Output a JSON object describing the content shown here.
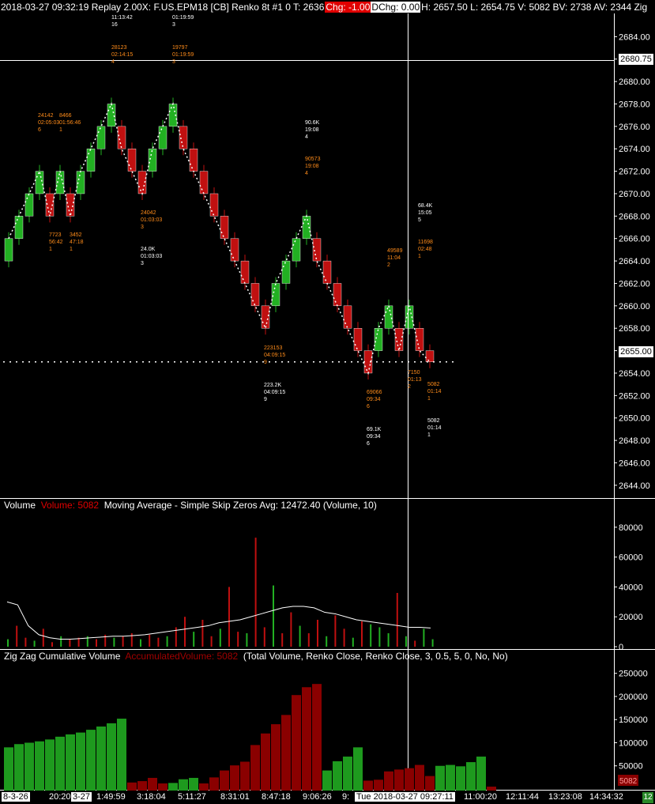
{
  "header": {
    "title": "2018-03-27 09:32:19 Replay 2.00X: F.US.EPM18 [CB]  Renko 8t  #1 0 T: 2636",
    "chg": "Chg: -1.00",
    "dchg": "DChg: 0.00",
    "stats": "H: 2657.50 L: 2654.75 V: 5082 BV: 2738 AV: 2344 Zig"
  },
  "price_axis": {
    "ticks": [
      "2684.00",
      "2682.00",
      "2680.00",
      "2678.00",
      "2676.00",
      "2674.00",
      "2672.00",
      "2670.00",
      "2668.00",
      "2666.00",
      "2664.00",
      "2662.00",
      "2660.00",
      "2658.00",
      "2656.00",
      "2654.00",
      "2652.00",
      "2650.00",
      "2648.00",
      "2646.00",
      "2644.00"
    ],
    "crosshair_price": "2680.75",
    "last_price": "2655.00"
  },
  "volume_panel": {
    "title_name": "Volume",
    "title_value": "Volume: 5082",
    "title_rest": "Moving Average - Simple Skip Zeros  Avg: 12472.40   (Volume, 10)",
    "ticks": [
      "80000",
      "60000",
      "40000",
      "20000",
      "0"
    ]
  },
  "zigzag_panel": {
    "title_name": "Zig Zag Cumulative Volume",
    "title_value": "AccumulatedVolume: 5082",
    "title_rest": "(Total Volume, Renko Close, Renko Close, 3, 0.5, 5, 0, No, No)",
    "ticks": [
      "250000",
      "200000",
      "150000",
      "100000",
      "50000"
    ],
    "last_value": "5082"
  },
  "time_axis": {
    "labels": [
      "8-3-26",
      "20:20",
      "3-27",
      "1:49:59",
      "3:18:04",
      "5:11:27",
      "8:31:01",
      "8:47:18",
      "9:06:26",
      "9:",
      "Tue 2018-03-27  09:27:11",
      "11:00:20",
      "12:11:44",
      "13:23:08",
      "14:34:32"
    ],
    "corner": "12"
  },
  "annotations": [
    {
      "text": "11:13:42\n16",
      "color": "w"
    },
    {
      "text": "01:19:59\n3",
      "color": "w"
    },
    {
      "text": "28123\n02:14:15\n4",
      "color": "o"
    },
    {
      "text": "19797\n01:19:59\n3",
      "color": "o"
    },
    {
      "text": "24142\n02:05:03\n6",
      "color": "o"
    },
    {
      "text": "8466\n01:56:46\n1",
      "color": "o"
    },
    {
      "text": "7723\n56:42\n1",
      "color": "o"
    },
    {
      "text": "3452\n47:18\n1",
      "color": "o"
    },
    {
      "text": "24042\n01:03:03\n3",
      "color": "o"
    },
    {
      "text": "24.0K\n01:03:03\n3",
      "color": "w"
    },
    {
      "text": "90.6K\n19:08\n4",
      "color": "w"
    },
    {
      "text": "90573\n19:08\n4",
      "color": "o"
    },
    {
      "text": "223153\n04:09:15\n9",
      "color": "o"
    },
    {
      "text": "223.2K\n04:09:15\n9",
      "color": "w"
    },
    {
      "text": "68.4K\n15:05\n5",
      "color": "w"
    },
    {
      "text": "11698\n02:48\n1",
      "color": "o"
    },
    {
      "text": "49589\n11:04\n2",
      "color": "o"
    },
    {
      "text": "69066\n09:34\n6",
      "color": "o"
    },
    {
      "text": "69.1K\n09:34\n6",
      "color": "w"
    },
    {
      "text": "7150\n01:13\n2",
      "color": "o"
    },
    {
      "text": "5082\n01:14\n1",
      "color": "o"
    },
    {
      "text": "5082\n01:14\n1",
      "color": "w"
    }
  ],
  "colors": {
    "up": "#22b022",
    "down": "#c01010",
    "zz_up": "#1e9a1e",
    "zz_down": "#8a0000",
    "axis": "#ffffff"
  },
  "chart_data": {
    "type": "candlestick",
    "renko_brick_size": 2,
    "bricks": [
      {
        "dir": "up",
        "open": 2664,
        "close": 2666
      },
      {
        "dir": "up",
        "open": 2666,
        "close": 2668
      },
      {
        "dir": "up",
        "open": 2668,
        "close": 2670
      },
      {
        "dir": "up",
        "open": 2670,
        "close": 2672
      },
      {
        "dir": "down",
        "open": 2670,
        "close": 2668
      },
      {
        "dir": "up",
        "open": 2670,
        "close": 2672
      },
      {
        "dir": "down",
        "open": 2670,
        "close": 2668
      },
      {
        "dir": "up",
        "open": 2670,
        "close": 2672
      },
      {
        "dir": "up",
        "open": 2672,
        "close": 2674
      },
      {
        "dir": "up",
        "open": 2674,
        "close": 2676
      },
      {
        "dir": "up",
        "open": 2676,
        "close": 2678
      },
      {
        "dir": "down",
        "open": 2676,
        "close": 2674
      },
      {
        "dir": "down",
        "open": 2674,
        "close": 2672
      },
      {
        "dir": "down",
        "open": 2672,
        "close": 2670
      },
      {
        "dir": "up",
        "open": 2672,
        "close": 2674
      },
      {
        "dir": "up",
        "open": 2674,
        "close": 2676
      },
      {
        "dir": "up",
        "open": 2676,
        "close": 2678
      },
      {
        "dir": "down",
        "open": 2676,
        "close": 2674
      },
      {
        "dir": "down",
        "open": 2674,
        "close": 2672
      },
      {
        "dir": "down",
        "open": 2672,
        "close": 2670
      },
      {
        "dir": "down",
        "open": 2670,
        "close": 2668
      },
      {
        "dir": "down",
        "open": 2668,
        "close": 2666
      },
      {
        "dir": "down",
        "open": 2666,
        "close": 2664
      },
      {
        "dir": "down",
        "open": 2664,
        "close": 2662
      },
      {
        "dir": "down",
        "open": 2662,
        "close": 2660
      },
      {
        "dir": "down",
        "open": 2660,
        "close": 2658
      },
      {
        "dir": "up",
        "open": 2660,
        "close": 2662
      },
      {
        "dir": "up",
        "open": 2662,
        "close": 2664
      },
      {
        "dir": "up",
        "open": 2664,
        "close": 2666
      },
      {
        "dir": "up",
        "open": 2666,
        "close": 2668
      },
      {
        "dir": "down",
        "open": 2666,
        "close": 2664
      },
      {
        "dir": "down",
        "open": 2664,
        "close": 2662
      },
      {
        "dir": "down",
        "open": 2662,
        "close": 2660
      },
      {
        "dir": "down",
        "open": 2660,
        "close": 2658
      },
      {
        "dir": "down",
        "open": 2658,
        "close": 2656
      },
      {
        "dir": "down",
        "open": 2656,
        "close": 2654
      },
      {
        "dir": "up",
        "open": 2656,
        "close": 2658
      },
      {
        "dir": "up",
        "open": 2658,
        "close": 2660
      },
      {
        "dir": "down",
        "open": 2658,
        "close": 2656
      },
      {
        "dir": "up",
        "open": 2658,
        "close": 2660
      },
      {
        "dir": "down",
        "open": 2658,
        "close": 2656
      },
      {
        "dir": "down",
        "open": 2656,
        "close": 2655
      }
    ],
    "volume": [
      5000,
      14000,
      6000,
      4000,
      12000,
      3000,
      7000,
      5000,
      6000,
      7000,
      5000,
      8000,
      6000,
      7000,
      9000,
      5000,
      8000,
      6000,
      7000,
      13000,
      20000,
      10000,
      18000,
      7000,
      12000,
      40000,
      10000,
      9000,
      73000,
      13000,
      41000,
      9000,
      23000,
      14000,
      9000,
      18000,
      7000,
      21000,
      12000,
      6000,
      17000,
      15000,
      13000,
      9000,
      36000,
      7000,
      4000,
      12000,
      5000
    ],
    "volume_ma": [
      30000,
      28000,
      14000,
      8000,
      6000,
      5000,
      5000,
      5500,
      6000,
      6500,
      7000,
      7000,
      7500,
      8000,
      9000,
      10000,
      11000,
      12000,
      13000,
      14000,
      16000,
      17000,
      18000,
      20000,
      22000,
      24000,
      26000,
      27000,
      27000,
      26000,
      23000,
      22000,
      20000,
      18000,
      17000,
      16000,
      15000,
      14000,
      13000,
      13000,
      12500
    ],
    "zigzag_volume": [
      {
        "dir": "up",
        "values": [
          90000,
          97000,
          100000,
          103000,
          107000,
          113000,
          118000,
          122000,
          128000,
          135000,
          142000,
          152000
        ]
      },
      {
        "dir": "down",
        "values": [
          14000,
          17000,
          24000,
          12000
        ]
      },
      {
        "dir": "up",
        "values": [
          13000,
          21000,
          24000
        ]
      },
      {
        "dir": "down",
        "values": [
          12000,
          25000,
          40000,
          51000,
          59000,
          95000,
          120000,
          140000,
          160000,
          203000,
          220000,
          227000
        ]
      },
      {
        "dir": "up",
        "values": [
          40000,
          60000,
          70000,
          90000
        ]
      },
      {
        "dir": "down",
        "values": [
          18000,
          20000,
          38000,
          42000,
          45000,
          52000,
          28000
        ]
      },
      {
        "dir": "up",
        "values": [
          50000,
          52000,
          49000,
          58000,
          70000
        ]
      },
      {
        "dir": "down",
        "values": [
          5082
        ]
      }
    ],
    "ylim_price": [
      2643,
      2686
    ],
    "ylim_volume": [
      0,
      90000
    ],
    "ylim_zigzag": [
      0,
      270000
    ]
  }
}
